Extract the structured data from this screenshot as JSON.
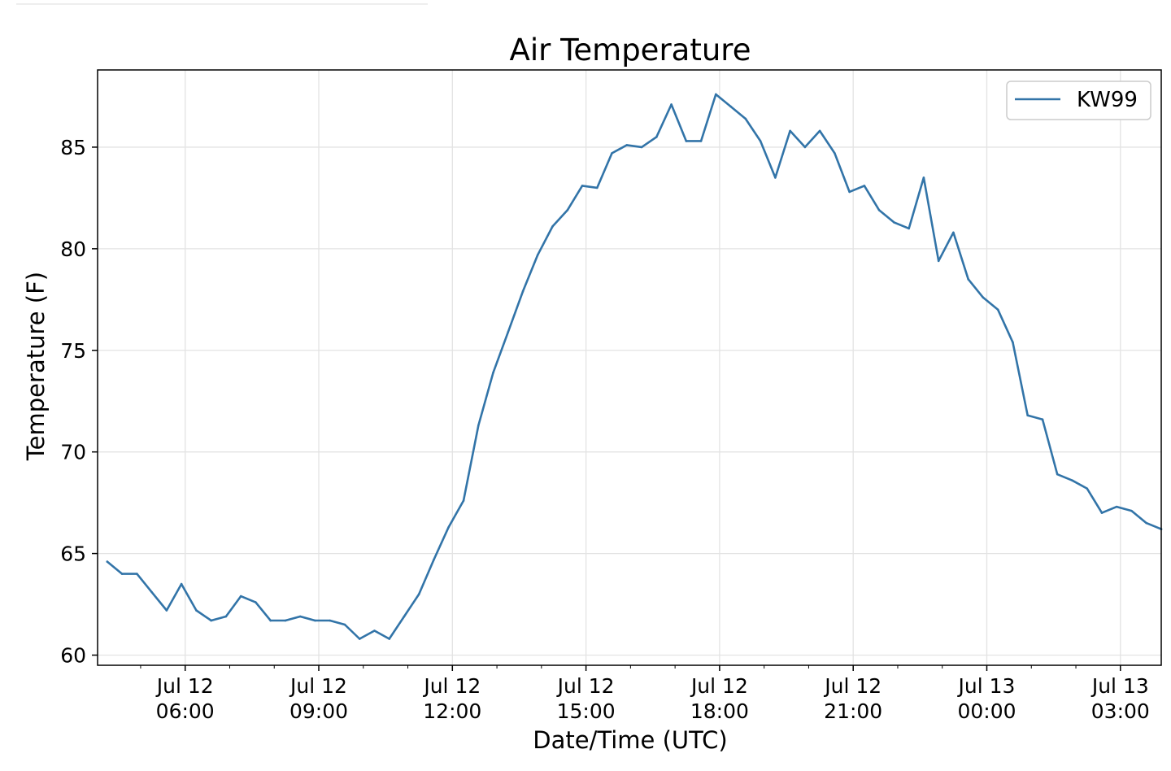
{
  "chart_data": {
    "type": "line",
    "title": "Air Temperature",
    "xlabel": "Date/Time (UTC)",
    "ylabel": "Temperature (F)",
    "x_unit": "datetime UTC",
    "xlim": [
      "2024-07-12T04:02",
      "2024-07-13T03:55"
    ],
    "ylim": [
      59.5,
      88.8
    ],
    "grid": true,
    "legend_position": "top-right",
    "x_ticks": [
      {
        "at": "2024-07-12T06:00",
        "line1": "Jul 12",
        "line2": "06:00"
      },
      {
        "at": "2024-07-12T09:00",
        "line1": "Jul 12",
        "line2": "09:00"
      },
      {
        "at": "2024-07-12T12:00",
        "line1": "Jul 12",
        "line2": "12:00"
      },
      {
        "at": "2024-07-12T15:00",
        "line1": "Jul 12",
        "line2": "15:00"
      },
      {
        "at": "2024-07-12T18:00",
        "line1": "Jul 12",
        "line2": "18:00"
      },
      {
        "at": "2024-07-12T21:00",
        "line1": "Jul 12",
        "line2": "21:00"
      },
      {
        "at": "2024-07-13T00:00",
        "line1": "Jul 13",
        "line2": "00:00"
      },
      {
        "at": "2024-07-13T03:00",
        "line1": "Jul 13",
        "line2": "03:00"
      }
    ],
    "y_ticks": [
      60,
      65,
      70,
      75,
      80,
      85
    ],
    "series": [
      {
        "name": "KW99",
        "color": "#3274a8",
        "x": [
          "2024-07-12T04:15",
          "2024-07-12T04:35",
          "2024-07-12T04:55",
          "2024-07-12T05:15",
          "2024-07-12T05:35",
          "2024-07-12T05:55",
          "2024-07-12T06:15",
          "2024-07-12T06:35",
          "2024-07-12T06:55",
          "2024-07-12T07:15",
          "2024-07-12T07:35",
          "2024-07-12T07:55",
          "2024-07-12T08:15",
          "2024-07-12T08:35",
          "2024-07-12T08:55",
          "2024-07-12T09:15",
          "2024-07-12T09:35",
          "2024-07-12T09:55",
          "2024-07-12T10:15",
          "2024-07-12T10:35",
          "2024-07-12T10:55",
          "2024-07-12T11:15",
          "2024-07-12T11:35",
          "2024-07-12T11:55",
          "2024-07-12T12:15",
          "2024-07-12T12:35",
          "2024-07-12T12:55",
          "2024-07-12T13:15",
          "2024-07-12T13:35",
          "2024-07-12T13:55",
          "2024-07-12T14:15",
          "2024-07-12T14:35",
          "2024-07-12T14:55",
          "2024-07-12T15:15",
          "2024-07-12T15:35",
          "2024-07-12T15:55",
          "2024-07-12T16:15",
          "2024-07-12T16:35",
          "2024-07-12T16:55",
          "2024-07-12T17:15",
          "2024-07-12T17:35",
          "2024-07-12T17:55",
          "2024-07-12T18:15",
          "2024-07-12T18:35",
          "2024-07-12T18:55",
          "2024-07-12T19:15",
          "2024-07-12T19:35",
          "2024-07-12T19:55",
          "2024-07-12T20:15",
          "2024-07-12T20:35",
          "2024-07-12T20:55",
          "2024-07-12T21:15",
          "2024-07-12T21:35",
          "2024-07-12T21:55",
          "2024-07-12T22:15",
          "2024-07-12T22:35",
          "2024-07-12T22:55",
          "2024-07-12T23:15",
          "2024-07-12T23:35",
          "2024-07-12T23:55",
          "2024-07-13T00:15",
          "2024-07-13T00:35",
          "2024-07-13T00:55",
          "2024-07-13T01:15",
          "2024-07-13T01:35",
          "2024-07-13T01:55",
          "2024-07-13T02:15",
          "2024-07-13T02:35",
          "2024-07-13T02:55",
          "2024-07-13T03:15",
          "2024-07-13T03:35",
          "2024-07-13T03:55"
        ],
        "y": [
          64.6,
          64.0,
          64.0,
          63.1,
          62.2,
          63.5,
          62.2,
          61.7,
          61.9,
          62.9,
          62.6,
          61.7,
          61.7,
          61.9,
          61.7,
          61.7,
          61.5,
          60.8,
          61.2,
          60.8,
          61.9,
          63.0,
          64.7,
          66.3,
          67.6,
          71.3,
          73.9,
          75.9,
          77.9,
          79.7,
          81.1,
          81.9,
          83.1,
          83.0,
          84.7,
          85.1,
          85.0,
          85.5,
          87.1,
          85.3,
          85.3,
          87.6,
          87.0,
          86.4,
          85.3,
          83.5,
          85.8,
          85.0,
          85.8,
          84.7,
          82.8,
          83.1,
          81.9,
          81.3,
          81.0,
          83.5,
          79.4,
          80.8,
          78.5,
          77.6,
          77.0,
          75.4,
          71.8,
          71.6,
          68.9,
          68.6,
          68.2,
          67.0,
          67.3,
          67.1,
          66.5,
          66.2
        ]
      }
    ]
  }
}
